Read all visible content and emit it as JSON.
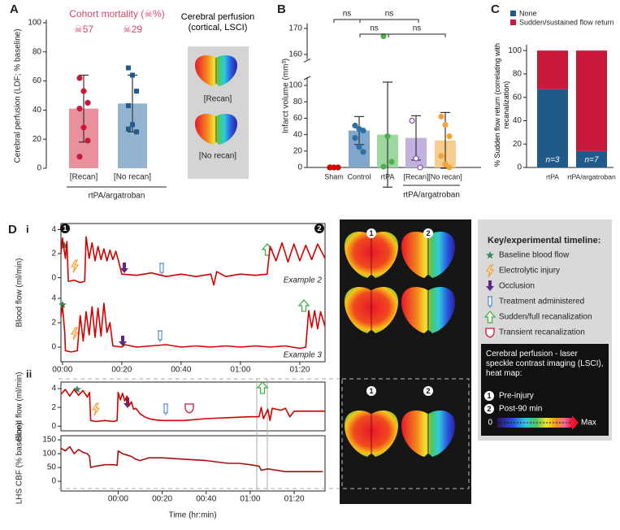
{
  "panel_labels": [
    "A",
    "B",
    "C",
    "D"
  ],
  "subpanel_labels": [
    "i",
    "ii"
  ],
  "chart_data": [
    {
      "type": "bar",
      "title": "Cohort mortality (☠%)",
      "mortality_labels": [
        "☠57",
        "☠29"
      ],
      "y_label": "Cerebral perfusion (LDF; % baseline)",
      "categories": [
        "[Recan]",
        "[No recan]"
      ],
      "group_label": "rtPA/argatroban",
      "values": [
        41,
        44.5
      ],
      "errors": [
        23,
        19.5
      ],
      "colors": [
        "#e8919c",
        "#94b3d1"
      ],
      "points": [
        [
          62,
          53,
          45,
          41,
          28,
          19,
          8
        ],
        [
          69,
          64,
          53,
          43,
          30,
          25,
          27
        ]
      ],
      "point_colors": [
        "#c8193a",
        "#1f5a8a"
      ],
      "ylim": [
        0,
        100
      ],
      "yticks": [
        0,
        20,
        40,
        60,
        80,
        100
      ]
    },
    {
      "type": "bar",
      "y_label": "Infarct volume (mm³)",
      "categories": [
        "Sham",
        "Control",
        "rtPA",
        "[Recan]",
        "[No recan]"
      ],
      "group_label": "rtPA/argatroban",
      "values": [
        0,
        45,
        40,
        36,
        33
      ],
      "errors": [
        null,
        17,
        64,
        27,
        34
      ],
      "colors": [
        "#d40000",
        "#7fa8cc",
        "#9fd89f",
        "#c3b1dd",
        "#f7cd8e"
      ],
      "points": [
        [
          0,
          0,
          0,
          0
        ],
        [
          51,
          47,
          45,
          36,
          25,
          19
        ],
        [
          167,
          38,
          7,
          1
        ],
        [
          57,
          11,
          0
        ],
        [
          62,
          52,
          38,
          14,
          4,
          0
        ]
      ],
      "point_colors": [
        "#d40000",
        "#2f6fa3",
        "#4caf50",
        "#7b4fa8",
        "#f2a33a"
      ],
      "ylim": [
        0,
        108
      ],
      "yticks": [
        0,
        20,
        40,
        60,
        80,
        100
      ],
      "upper_ylim": [
        158,
        172
      ],
      "upper_yticks": [
        160,
        170
      ],
      "annotations": [
        "ns",
        "ns",
        "ns",
        "ns"
      ]
    },
    {
      "type": "stacked_bar",
      "y_label": "% Sudden flow return (correlating with recanalization)",
      "categories": [
        "rtPA",
        "rtPA/argatroban"
      ],
      "series": [
        {
          "name": "None",
          "color": "#1f5a8a",
          "values": [
            67,
            14
          ]
        },
        {
          "name": "Sudden/sustained flow return",
          "color": "#c8193a",
          "values": [
            33,
            86
          ]
        }
      ],
      "annotations": [
        "n=3",
        "n=7"
      ],
      "ylim": [
        0,
        105
      ],
      "yticks": [
        0,
        20,
        40,
        60,
        80,
        100
      ]
    },
    {
      "type": "line",
      "annotation": "Example 2",
      "y_label": "Blood flow (ml/min)",
      "color": "#d40000",
      "x": [
        -0.5,
        0,
        1,
        1.5,
        2,
        4,
        6,
        7.5,
        8,
        9,
        10,
        11,
        12,
        13,
        14,
        15,
        16,
        17,
        18,
        19,
        20,
        25,
        30,
        35,
        40,
        45,
        50,
        51,
        52,
        55,
        60,
        65,
        69,
        70,
        72,
        74,
        76,
        78,
        80,
        82,
        84,
        86,
        88.5
      ],
      "values": [
        2.0,
        3.3,
        1.6,
        3.0,
        -0.3,
        -0.2,
        -0.4,
        -0.3,
        3.4,
        1.6,
        2.9,
        1.4,
        2.6,
        1.5,
        2.4,
        1.4,
        2.3,
        1.5,
        2.2,
        1.3,
        0.3,
        0.2,
        0.4,
        0.1,
        0.3,
        0.1,
        0.3,
        -0.6,
        0.5,
        0.1,
        0.3,
        0.2,
        0.3,
        2.6,
        1.4,
        2.9,
        1.3,
        2.8,
        1.4,
        2.7,
        1.5,
        2.8,
        1.6
      ],
      "xlim": [
        -0.5,
        88.5
      ],
      "ylim": [
        -0.7,
        4.5
      ],
      "yticks": [
        0,
        2,
        4
      ]
    },
    {
      "type": "line",
      "annotation": "Example 3",
      "color": "#d40000",
      "x": [
        -0.5,
        0,
        0.8,
        1,
        3,
        5,
        6,
        7,
        8,
        9,
        10,
        11,
        12,
        13,
        14,
        15,
        16,
        17,
        20,
        21,
        25,
        30,
        35,
        40,
        45,
        50,
        55,
        60,
        65,
        70,
        75,
        80,
        82,
        83,
        84,
        85,
        86,
        87,
        88.5
      ],
      "values": [
        2.5,
        3.4,
        1.2,
        -0.3,
        -0.4,
        -0.3,
        2.6,
        0.5,
        2.9,
        1.0,
        3.3,
        0.8,
        3.2,
        0.9,
        3.6,
        1.2,
        2.0,
        0.1,
        0.0,
        0.2,
        0.0,
        0.1,
        0.2,
        0.0,
        0.1,
        0.0,
        0.1,
        0.0,
        0.1,
        0.0,
        0.1,
        -0.1,
        0.0,
        3.0,
        1.6,
        3.0,
        1.5,
        2.9,
        1.7
      ],
      "xlim": [
        -0.5,
        88.5
      ],
      "ylim": [
        -1.2,
        4.5
      ],
      "yticks": [
        0,
        2,
        4
      ],
      "xticks": [
        {
          "value": 0,
          "label": "00:00"
        },
        {
          "value": 20,
          "label": "00:20"
        },
        {
          "value": 40,
          "label": "00:40"
        },
        {
          "value": 60,
          "label": "01:00"
        },
        {
          "value": 80,
          "label": "01:20"
        }
      ]
    },
    {
      "type": "line",
      "y_label": "Blood flow (ml/min)",
      "color": "#d40000",
      "x": [
        -26,
        -24,
        -22,
        -20,
        -18,
        -16,
        -14,
        -13,
        -12.5,
        -10,
        -6,
        -2,
        -0.5,
        0,
        1,
        2,
        3,
        4,
        5,
        6,
        7,
        8,
        10,
        12,
        14,
        16,
        20,
        30,
        40,
        50,
        60,
        64,
        65,
        66,
        68,
        69,
        70,
        74,
        76,
        78,
        80,
        85,
        90,
        94
      ],
      "values": [
        3.4,
        3.9,
        3.2,
        3.9,
        3.3,
        3.8,
        3.1,
        3.6,
        0.6,
        0.5,
        0.6,
        0.5,
        0.6,
        3.6,
        2.8,
        3.5,
        2.7,
        3.2,
        2.2,
        2.6,
        1.8,
        1.9,
        1.3,
        1.0,
        0.8,
        0.7,
        0.6,
        0.6,
        0.8,
        0.9,
        1.0,
        1.0,
        2.0,
        0.8,
        1.8,
        0.6,
        1.9,
        1.7,
        1.9,
        1.0,
        1.6,
        1.6,
        1.6,
        1.6
      ],
      "xlim": [
        -26,
        94
      ],
      "ylim": [
        -0.5,
        4.7
      ],
      "yticks": [
        0,
        2,
        4
      ]
    },
    {
      "type": "line",
      "y_label": "LHS CBF (% baseline)",
      "x_label": "Time (hr:min)",
      "color": "#a80f0f",
      "x": [
        -26,
        -24,
        -22,
        -20,
        -18,
        -16,
        -14,
        -13,
        -12.5,
        -10,
        -6,
        -2,
        -0.5,
        0,
        2,
        4,
        6,
        8,
        10,
        12,
        14,
        20,
        30,
        40,
        50,
        55,
        60,
        64,
        65,
        68,
        72,
        76,
        80,
        85,
        90,
        93
      ],
      "values": [
        120,
        110,
        125,
        100,
        115,
        105,
        100,
        90,
        50,
        55,
        60,
        60,
        58,
        110,
        100,
        95,
        90,
        80,
        75,
        80,
        85,
        85,
        80,
        75,
        65,
        65,
        60,
        55,
        40,
        45,
        40,
        35,
        35,
        35,
        35,
        35
      ],
      "xlim": [
        -26,
        94
      ],
      "ylim": [
        -35,
        165
      ],
      "yticks": [
        0,
        50,
        100,
        150
      ],
      "xticks": [
        {
          "value": 0,
          "label": "00:00"
        },
        {
          "value": 20,
          "label": "00:20"
        },
        {
          "value": 40,
          "label": "00:40"
        },
        {
          "value": 60,
          "label": "01:00"
        },
        {
          "value": 80,
          "label": "01:20"
        }
      ]
    }
  ],
  "perfusion_inset": {
    "title": "Cerebral perfusion (cortical, LSCI)",
    "labels": [
      "[Recan]",
      "[No recan]"
    ]
  },
  "key": {
    "title": "Key/experimental timeline:",
    "items": [
      "Baseline blood flow",
      "Electrolytic injury",
      "Occlusion",
      "Treatment administered",
      "Sudden/full recanalization",
      "Transient recanalization"
    ],
    "lsci_title": "Cerebral perfusion - laser speckle contrast imaging (LSCI), heat map:",
    "stages": [
      {
        "number": "1",
        "label": "Pre-injury"
      },
      {
        "number": "2",
        "label": "Post-90 min"
      }
    ],
    "colorbar_min": 0,
    "colorbar_max": "Max"
  }
}
